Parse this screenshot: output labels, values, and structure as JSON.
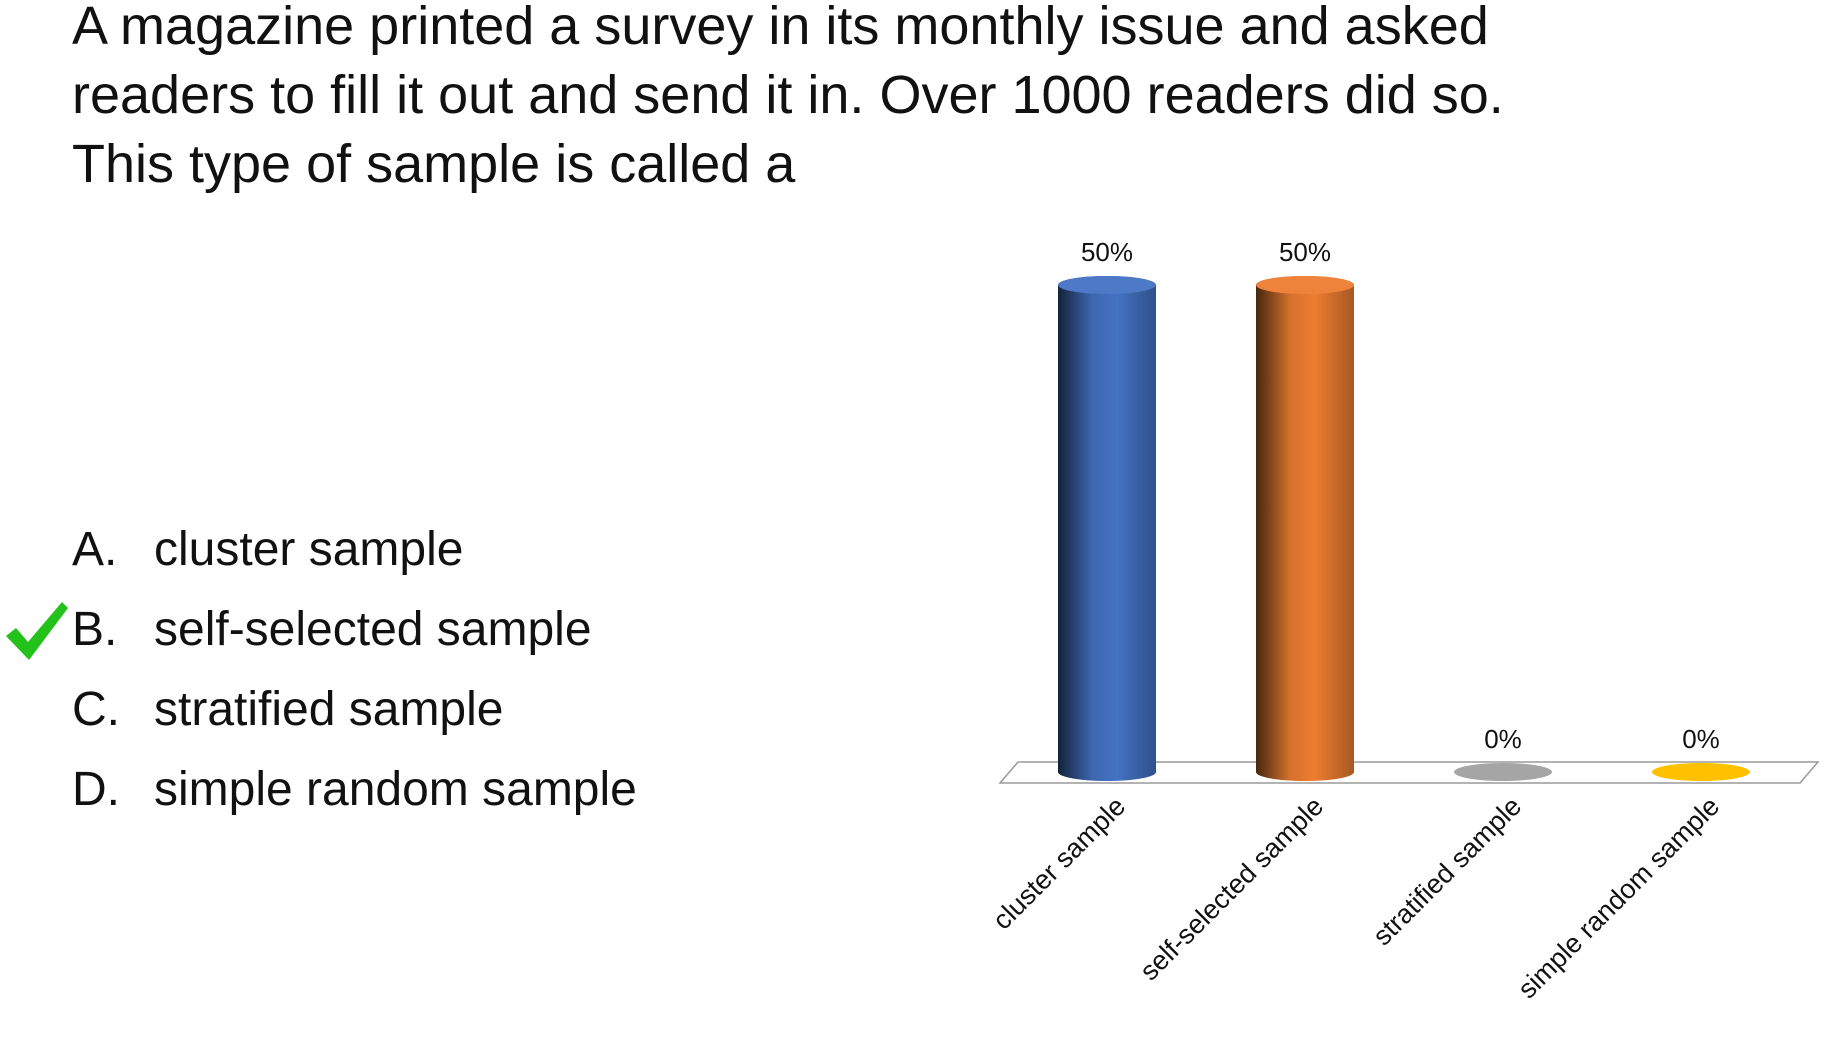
{
  "question": {
    "line1": "A magazine printed a survey in its monthly issue and asked",
    "line2": "readers to fill it out and send it in. Over 1000 readers did so.",
    "line3": "This type of sample is called a"
  },
  "answers": [
    {
      "letter": "A.",
      "text": "cluster sample",
      "correct": false
    },
    {
      "letter": "B.",
      "text": "self-selected sample",
      "correct": true
    },
    {
      "letter": "C.",
      "text": "stratified sample",
      "correct": false
    },
    {
      "letter": "D.",
      "text": "simple random sample",
      "correct": false
    }
  ],
  "check_icon": "checkmark-icon",
  "colors": {
    "check": "#22c21a",
    "floor_stroke": "#9a9a9a"
  },
  "chart_data": {
    "type": "bar",
    "style": "3d-cylinder",
    "categories": [
      "cluster sample",
      "self-selected sample",
      "stratified sample",
      "simple random sample"
    ],
    "values": [
      50,
      50,
      0,
      0
    ],
    "value_labels": [
      "50%",
      "50%",
      "0%",
      "0%"
    ],
    "colors": [
      "#4472c4",
      "#ed7d31",
      "#a5a5a5",
      "#ffc000"
    ],
    "ylim": [
      0,
      50
    ],
    "grid": false,
    "legend": "none",
    "title": "",
    "xlabel": "",
    "ylabel": ""
  }
}
